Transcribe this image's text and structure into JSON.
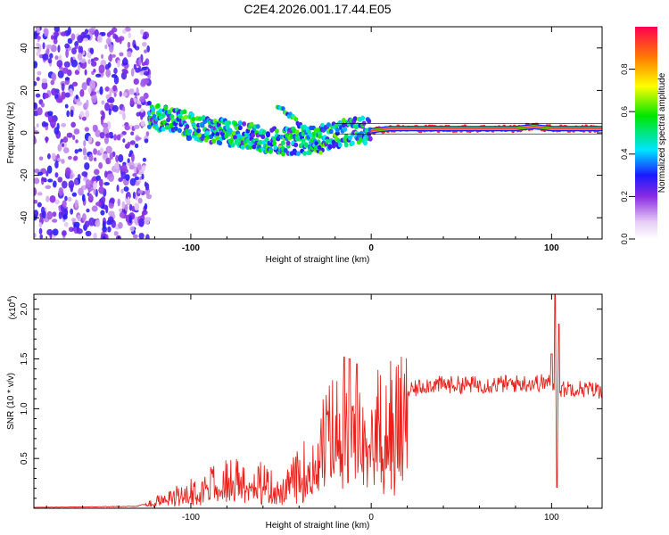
{
  "title": "C2E4.2026.001.17.44.E05",
  "colors": {
    "series": "#e8221b",
    "frame": "#000000"
  },
  "chart_data": [
    {
      "type": "heatmap",
      "name": "spectrogram",
      "xlabel": "Height of straight line (km)",
      "ylabel": "Frequency (Hz)",
      "xlim": [
        -187,
        128
      ],
      "ylim": [
        -50,
        50
      ],
      "xticks": [
        -100,
        0,
        100
      ],
      "xtick_labels": [
        "-100",
        "0",
        "100"
      ],
      "yticks": [
        -40,
        -20,
        0,
        20,
        40
      ],
      "ytick_labels": [
        "-40",
        "-20",
        "0",
        "20",
        "40"
      ],
      "noise_region_x": [
        -187,
        -123
      ],
      "ridge": {
        "x": [
          -123,
          -110,
          -100,
          -90,
          -80,
          -70,
          -60,
          -50,
          -40,
          -30,
          -20,
          -10,
          0,
          10,
          20,
          40,
          60,
          80,
          90,
          100,
          128
        ],
        "y": [
          8,
          6,
          3,
          1,
          0,
          -1,
          -3,
          -4,
          -4,
          -3,
          -1,
          1,
          1,
          2,
          2,
          2,
          2,
          2,
          3,
          2,
          2
        ]
      },
      "branch": {
        "x": [
          -52,
          -42,
          -35,
          -28
        ],
        "y": [
          12,
          6,
          0,
          -8
        ]
      },
      "colorbar": {
        "label": "Normalized spectral amplitude",
        "range": [
          0,
          1
        ],
        "ticks": [
          0.0,
          0.2,
          0.4,
          0.6,
          0.8
        ],
        "tick_labels": [
          "0.0",
          "0.2",
          "0.4",
          "0.6",
          "0.8"
        ]
      }
    },
    {
      "type": "line",
      "name": "snr",
      "xlabel": "Height of straight line (km)",
      "ylabel": "SNR (10 * v/v)",
      "scale_label": "(x10",
      "scale_exponent": "4",
      "xlim": [
        -187,
        128
      ],
      "ylim": [
        0,
        21500
      ],
      "xticks": [
        -100,
        0,
        100
      ],
      "xtick_labels": [
        "-100",
        "0",
        "100"
      ],
      "yticks": [
        5000,
        10000,
        15000,
        20000
      ],
      "ytick_labels": [
        "0.5",
        "1.0",
        "1.5",
        "2.0"
      ],
      "envelope": {
        "x": [
          -187,
          -130,
          -120,
          -110,
          -100,
          -90,
          -80,
          -70,
          -60,
          -55,
          -50,
          -45,
          -40,
          -35,
          -30,
          -25,
          -20,
          -15,
          -10,
          -5,
          0,
          10,
          20,
          30,
          40,
          60,
          80,
          95,
          100,
          103,
          106,
          110,
          128
        ],
        "y": [
          100,
          200,
          800,
          1500,
          2500,
          3200,
          3800,
          4000,
          3500,
          2800,
          1800,
          3500,
          4500,
          5500,
          7500,
          9000,
          10500,
          9500,
          9000,
          9500,
          10500,
          11000,
          12000,
          12800,
          12800,
          12800,
          12900,
          13000,
          13000,
          12500,
          12300,
          12500,
          12200
        ]
      },
      "spikes": [
        {
          "x": -15,
          "y": 15200
        },
        {
          "x": -12,
          "y": 15000
        },
        {
          "x": -8,
          "y": 14500
        },
        {
          "x": 100,
          "y": 15500
        },
        {
          "x": 102,
          "y": 21500
        },
        {
          "x": 103,
          "y": 2100
        },
        {
          "x": 104,
          "y": 18500
        }
      ]
    }
  ]
}
